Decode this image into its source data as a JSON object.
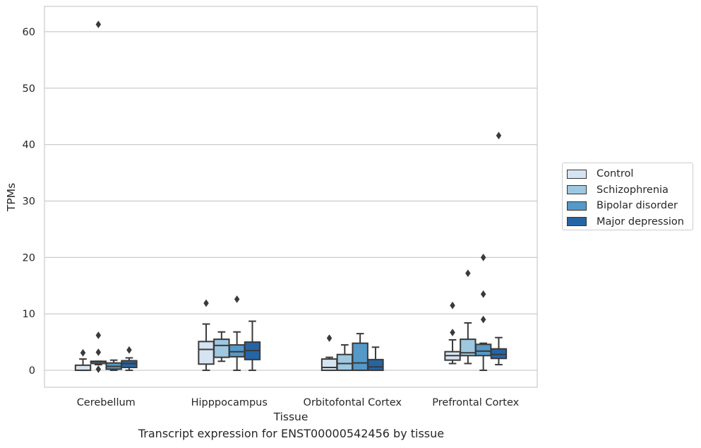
{
  "caption": "Transcript expression for ENST00000542456 by tissue",
  "colors": [
    "#d6e4f1",
    "#9ec8e0",
    "#5599c8",
    "#2565a6"
  ],
  "chart_data": {
    "type": "box",
    "title": "",
    "xlabel": "Tissue",
    "ylabel": "TPMs",
    "categories": [
      "Cerebellum",
      "Hipppocampus",
      "Orbitofontal Cortex",
      "Prefrontal Cortex"
    ],
    "ylim": [
      -3,
      64.5
    ],
    "yticks": [
      0,
      10,
      20,
      30,
      40,
      50,
      60
    ],
    "grid": "horizontal",
    "legend_position": "right",
    "series": [
      {
        "name": "Control",
        "boxes": [
          {
            "whislo": 0,
            "q1": 0,
            "med": 0,
            "q3": 0.9,
            "whishi": 2.0,
            "fliers": [
              3.1
            ]
          },
          {
            "whislo": 0,
            "q1": 1.1,
            "med": 3.7,
            "q3": 5.1,
            "whishi": 8.2,
            "fliers": [
              11.9
            ]
          },
          {
            "whislo": 0,
            "q1": 0,
            "med": 0.5,
            "q3": 2.0,
            "whishi": 2.3,
            "fliers": [
              5.7
            ]
          },
          {
            "whislo": 1.2,
            "q1": 1.8,
            "med": 2.6,
            "q3": 3.3,
            "whishi": 5.4,
            "fliers": [
              6.7,
              11.5
            ]
          }
        ]
      },
      {
        "name": "Schizophrenia",
        "boxes": [
          {
            "whislo": 1.0,
            "q1": 1.2,
            "med": 1.5,
            "q3": 1.6,
            "whishi": 1.6,
            "fliers": [
              0.2,
              3.2,
              6.2,
              61.3
            ]
          },
          {
            "whislo": 1.6,
            "q1": 2.3,
            "med": 4.4,
            "q3": 5.5,
            "whishi": 6.8,
            "fliers": []
          },
          {
            "whislo": 0,
            "q1": 0,
            "med": 1.2,
            "q3": 2.8,
            "whishi": 4.5,
            "fliers": []
          },
          {
            "whislo": 1.2,
            "q1": 2.6,
            "med": 3.1,
            "q3": 5.5,
            "whishi": 8.4,
            "fliers": [
              17.2
            ]
          }
        ]
      },
      {
        "name": "Bipolar disorder",
        "boxes": [
          {
            "whislo": 0,
            "q1": 0.2,
            "med": 0.7,
            "q3": 1.3,
            "whishi": 1.8,
            "fliers": []
          },
          {
            "whislo": 0,
            "q1": 2.4,
            "med": 3.3,
            "q3": 4.5,
            "whishi": 6.8,
            "fliers": [
              12.6
            ]
          },
          {
            "whislo": 0,
            "q1": 0,
            "med": 1.3,
            "q3": 4.8,
            "whishi": 6.5,
            "fliers": []
          },
          {
            "whislo": 0,
            "q1": 2.6,
            "med": 3.4,
            "q3": 4.6,
            "whishi": 4.8,
            "fliers": [
              9.0,
              13.5,
              20.0
            ]
          }
        ]
      },
      {
        "name": "Major depression",
        "boxes": [
          {
            "whislo": 0,
            "q1": 0.5,
            "med": 1.2,
            "q3": 1.7,
            "whishi": 2.2,
            "fliers": [
              3.6
            ]
          },
          {
            "whislo": 0,
            "q1": 1.9,
            "med": 3.5,
            "q3": 5.0,
            "whishi": 8.7,
            "fliers": []
          },
          {
            "whislo": 0,
            "q1": 0,
            "med": 0.6,
            "q3": 1.9,
            "whishi": 4.1,
            "fliers": []
          },
          {
            "whislo": 1.0,
            "q1": 2.1,
            "med": 2.8,
            "q3": 3.8,
            "whishi": 5.8,
            "fliers": [
              41.6
            ]
          }
        ]
      }
    ]
  }
}
